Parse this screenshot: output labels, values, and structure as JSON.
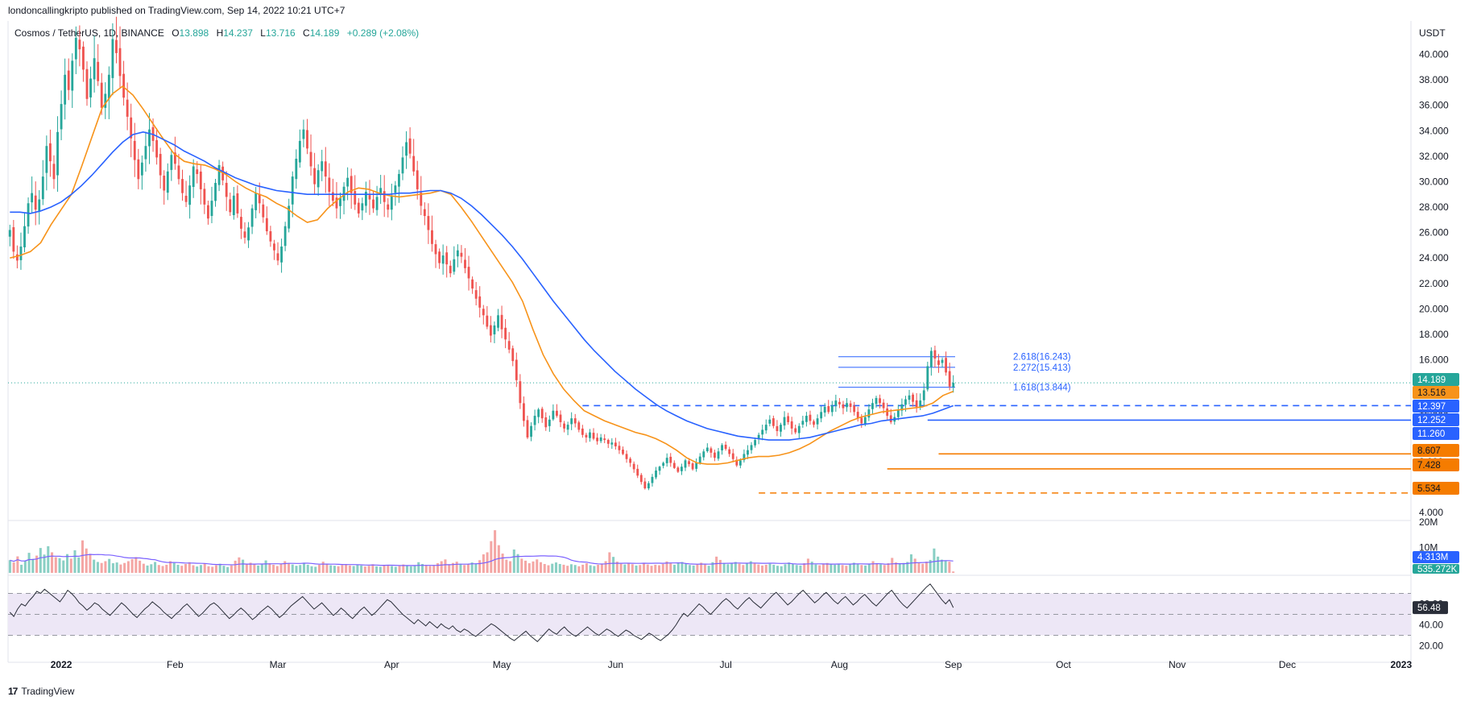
{
  "header": {
    "published": "londoncallingkripto published on TradingView.com, Sep 14, 2022 10:21 UTC+7"
  },
  "legend": {
    "symbol": "Cosmos / TetherUS, 1D, BINANCE",
    "open_label": "O",
    "open": "13.898",
    "high_label": "H",
    "high": "14.237",
    "low_label": "L",
    "low": "13.716",
    "close_label": "C",
    "close": "14.189",
    "change": "+0.289 (+2.08%)"
  },
  "footer": {
    "brand_mark": "17",
    "brand": "TradingView"
  },
  "colors": {
    "up": "#26a69a",
    "down": "#ef5350",
    "ema_fast": "#f7931a",
    "ema_slow": "#2962ff",
    "rsi_line": "#2a2e39",
    "rsi_band": "#ede7f6",
    "vol_ma": "#7b61ff",
    "level_blue": "#2962ff",
    "level_orange": "#f57c00"
  },
  "chart_data": [
    {
      "type": "candlestick",
      "currency": "USDT",
      "y_ticks": [
        "40.000",
        "38.000",
        "36.000",
        "34.000",
        "32.000",
        "30.000",
        "28.000",
        "26.000",
        "24.000",
        "22.000",
        "20.000",
        "18.000",
        "16.000",
        "14.000",
        "12.000",
        "10.000",
        "8.000",
        "6.000",
        "4.000"
      ],
      "ylim": [
        3.5,
        42.5
      ],
      "x_ticks": [
        "2022",
        "Feb",
        "Mar",
        "Apr",
        "May",
        "Jun",
        "Jul",
        "Aug",
        "Sep",
        "Oct",
        "Nov",
        "Dec",
        "2023"
      ],
      "close_series": [
        26.2,
        24.5,
        23.8,
        24.9,
        26.5,
        28.3,
        29.1,
        27.8,
        28.6,
        30.4,
        32.8,
        31.6,
        30.2,
        33.9,
        36.1,
        38.4,
        37.2,
        39.5,
        41.3,
        40.4,
        38.8,
        36.5,
        38.1,
        39.7,
        37.9,
        35.8,
        36.9,
        38.4,
        41.2,
        40.1,
        38.3,
        36.6,
        35.1,
        33.4,
        31.7,
        30.2,
        31.5,
        32.8,
        34.1,
        33.2,
        31.9,
        30.5,
        29.3,
        30.8,
        32.1,
        31.4,
        30.2,
        29.1,
        28.4,
        29.7,
        31.2,
        30.6,
        29.4,
        28.2,
        27.1,
        28.5,
        29.9,
        31.3,
        30.1,
        28.8,
        27.6,
        28.9,
        27.5,
        26.3,
        25.6,
        26.4,
        27.9,
        29.1,
        28.3,
        27.2,
        26.1,
        25.3,
        24.6,
        23.8,
        24.9,
        26.5,
        28.1,
        30.4,
        31.8,
        33.2,
        34.1,
        32.6,
        31.2,
        29.8,
        30.9,
        31.6,
        30.4,
        29.2,
        28.5,
        27.9,
        28.7,
        29.6,
        30.3,
        29.1,
        28.2,
        27.5,
        28.3,
        29.2,
        28.6,
        27.9,
        28.8,
        29.5,
        28.4,
        27.8,
        28.9,
        29.7,
        30.6,
        31.9,
        33.1,
        32.2,
        30.8,
        29.4,
        28.1,
        27.3,
        26.2,
        25.1,
        24.3,
        23.6,
        24.2,
        23.5,
        22.8,
        23.9,
        24.6,
        24.1,
        23.2,
        22.4,
        21.6,
        20.8,
        20.1,
        19.5,
        18.6,
        17.9,
        18.7,
        19.5,
        18.4,
        17.6,
        16.8,
        15.9,
        14.4,
        12.6,
        11.2,
        9.9,
        10.8,
        11.6,
        12.1,
        11.4,
        10.7,
        11.3,
        12.0,
        11.6,
        11.1,
        10.6,
        10.9,
        11.4,
        11.0,
        10.5,
        10.1,
        9.9,
        10.3,
        9.8,
        9.6,
        9.9,
        9.7,
        9.4,
        9.5,
        9.2,
        8.9,
        8.6,
        8.2,
        7.9,
        7.4,
        6.9,
        6.4,
        5.9,
        6.3,
        6.8,
        7.3,
        7.6,
        7.9,
        8.3,
        7.9,
        7.5,
        7.2,
        7.6,
        8.1,
        7.8,
        7.4,
        7.9,
        8.4,
        8.8,
        9.1,
        8.7,
        8.3,
        8.8,
        9.3,
        9.0,
        8.6,
        8.2,
        7.7,
        8.1,
        8.6,
        8.9,
        9.3,
        9.7,
        10.1,
        10.5,
        10.9,
        11.3,
        10.8,
        10.4,
        10.9,
        11.5,
        11.1,
        10.6,
        10.3,
        10.8,
        11.2,
        11.6,
        11.2,
        10.9,
        11.4,
        11.9,
        12.3,
        11.9,
        12.4,
        12.8,
        12.5,
        12.2,
        12.6,
        12.3,
        11.9,
        11.4,
        11.0,
        11.5,
        12.1,
        12.6,
        13.0,
        12.6,
        12.2,
        11.6,
        11.1,
        11.5,
        12.1,
        12.5,
        12.9,
        13.2,
        12.7,
        12.3,
        12.8,
        13.6,
        15.5,
        16.7,
        16.1,
        15.6,
        16.0,
        15.0,
        13.9,
        14.189
      ],
      "ema_fast_series": [
        24.0,
        24.2,
        24.5,
        25.2,
        26.6,
        27.8,
        29.0,
        31.2,
        33.5,
        35.8,
        36.9,
        37.5,
        36.8,
        35.7,
        34.5,
        33.3,
        32.2,
        31.6,
        31.4,
        31.3,
        31.0,
        30.6,
        30.0,
        29.5,
        29.1,
        28.8,
        28.3,
        27.9,
        27.3,
        26.8,
        27.0,
        27.9,
        28.6,
        29.2,
        29.5,
        29.4,
        29.1,
        28.9,
        28.8,
        28.9,
        29.0,
        29.1,
        29.3,
        29.0,
        28.0,
        26.9,
        25.7,
        24.5,
        23.3,
        22.1,
        20.6,
        18.4,
        16.4,
        14.9,
        13.7,
        12.8,
        12.0,
        11.6,
        11.2,
        10.9,
        10.6,
        10.3,
        10.1,
        9.8,
        9.4,
        8.9,
        8.3,
        7.9,
        7.8,
        7.8,
        7.9,
        8.1,
        8.3,
        8.4,
        8.4,
        8.5,
        8.7,
        9.0,
        9.4,
        9.9,
        10.4,
        10.8,
        11.2,
        11.5,
        11.7,
        11.9,
        12.0,
        12.1,
        12.2,
        12.3,
        12.6,
        13.2,
        13.516
      ],
      "ema_slow_series": [
        27.6,
        27.6,
        27.5,
        27.7,
        28.0,
        28.4,
        29.0,
        29.7,
        30.5,
        31.4,
        32.3,
        33.1,
        33.7,
        33.9,
        33.7,
        33.3,
        32.9,
        32.4,
        32.0,
        31.6,
        31.1,
        30.7,
        30.3,
        30.0,
        29.7,
        29.5,
        29.3,
        29.2,
        29.1,
        29.0,
        29.0,
        29.0,
        29.0,
        29.0,
        29.0,
        29.0,
        29.0,
        29.0,
        29.1,
        29.1,
        29.2,
        29.3,
        29.3,
        29.1,
        28.7,
        28.1,
        27.4,
        26.6,
        25.8,
        24.9,
        23.9,
        22.8,
        21.7,
        20.6,
        19.6,
        18.6,
        17.6,
        16.7,
        15.9,
        15.1,
        14.4,
        13.7,
        13.1,
        12.5,
        12.0,
        11.6,
        11.2,
        10.9,
        10.6,
        10.4,
        10.2,
        10.0,
        9.9,
        9.8,
        9.7,
        9.7,
        9.7,
        9.8,
        9.9,
        10.1,
        10.3,
        10.5,
        10.7,
        10.9,
        11.0,
        11.2,
        11.3,
        11.4,
        11.5,
        11.6,
        11.8,
        12.1,
        12.397
      ],
      "levels": [
        {
          "value": 12.397,
          "label": "12.397",
          "color": "#2962ff",
          "style": "dashed",
          "start_x_index": 156
        },
        {
          "value": 11.26,
          "label": "11.260",
          "color": "#2962ff",
          "style": "solid",
          "start_x_index": 250
        },
        {
          "value": 8.607,
          "label": "8.607",
          "color": "#f57c00",
          "style": "solid",
          "start_x_index": 253
        },
        {
          "value": 7.428,
          "label": "7.428",
          "color": "#f57c00",
          "style": "solid",
          "start_x_index": 239
        },
        {
          "value": 5.534,
          "label": "5.534",
          "color": "#f57c00",
          "style": "dashed",
          "start_x_index": 204
        }
      ],
      "fib_levels": [
        {
          "value": 16.243,
          "label": "2.618(16.243)"
        },
        {
          "value": 15.413,
          "label": "2.272(15.413)"
        },
        {
          "value": 13.844,
          "label": "1.618(13.844)"
        }
      ],
      "price_badges": [
        {
          "value": 14.189,
          "label": "14.189",
          "color": "#26a69a"
        },
        {
          "value": 13.516,
          "label": "13.516",
          "color": "#f7931a"
        },
        {
          "value": 12.397,
          "label": "12.397",
          "color": "#2962ff"
        },
        {
          "value": 12.252,
          "label": "12.252",
          "color": "#2962ff"
        },
        {
          "value": 11.26,
          "label": "11.260",
          "color": "#2962ff"
        },
        {
          "value": 8.607,
          "label": "8.607",
          "color": "#f57c00"
        },
        {
          "value": 7.428,
          "label": "7.428",
          "color": "#f57c00"
        },
        {
          "value": 5.534,
          "label": "5.534",
          "color": "#f57c00"
        }
      ]
    },
    {
      "type": "bar",
      "name": "volume",
      "y_ticks": [
        "20M",
        "10M"
      ],
      "ylim": [
        0,
        20
      ],
      "values_m": [
        5.0,
        4.1,
        6.5,
        3.2,
        4.8,
        7.9,
        5.5,
        6.8,
        9.8,
        7.2,
        10.5,
        8.1,
        6.2,
        5.8,
        4.9,
        7.4,
        5.6,
        8.9,
        6.1,
        12.8,
        9.6,
        7.5,
        5.2,
        4.3,
        3.9,
        4.6,
        5.5,
        3.8,
        4.1,
        3.3,
        3.9,
        4.6,
        5.4,
        6.2,
        4.8,
        3.6,
        2.9,
        3.4,
        4.3,
        3.1,
        2.7,
        3.2,
        4.6,
        3.9,
        3.2,
        2.8,
        3.5,
        4.2,
        3.0,
        2.5,
        3.1,
        3.8,
        2.6,
        2.4,
        3.0,
        3.6,
        2.8,
        2.3,
        2.9,
        4.8,
        6.1,
        5.2,
        3.5,
        4.0,
        3.4,
        2.9,
        3.6,
        4.9,
        3.8,
        3.2,
        2.7,
        3.5,
        4.6,
        3.9,
        3.3,
        2.8,
        3.1,
        4.0,
        3.2,
        2.6,
        2.4,
        3.2,
        4.4,
        3.6,
        3.0,
        2.8,
        2.6,
        3.1,
        3.5,
        2.9,
        2.7,
        3.3,
        2.9,
        2.5,
        2.8,
        3.4,
        2.6,
        2.4,
        2.9,
        3.2,
        2.7,
        2.4,
        2.8,
        3.3,
        2.9,
        2.6,
        3.0,
        4.2,
        3.5,
        3.1,
        2.7,
        3.0,
        3.8,
        4.6,
        5.3,
        3.4,
        3.9,
        4.4,
        3.6,
        3.1,
        3.5,
        4.1,
        3.6,
        5.0,
        7.3,
        8.1,
        12.5,
        16.8,
        10.9,
        7.6,
        5.2,
        4.6,
        9.2,
        7.4,
        5.6,
        4.8,
        3.8,
        4.5,
        5.3,
        4.2,
        3.5,
        3.0,
        3.6,
        4.1,
        3.5,
        3.2,
        2.8,
        3.4,
        3.1,
        2.6,
        3.2,
        3.8,
        3.0,
        2.7,
        3.2,
        3.6,
        4.6,
        8.1,
        6.3,
        4.4,
        3.6,
        3.3,
        3.9,
        3.4,
        2.9,
        3.1,
        3.7,
        3.3,
        2.8,
        3.2,
        3.0,
        3.5,
        4.5,
        3.8,
        3.2,
        3.9,
        4.3,
        3.6,
        3.1,
        2.9,
        3.4,
        4.0,
        3.3,
        2.8,
        4.2,
        6.4,
        5.1,
        3.9,
        3.4,
        3.7,
        4.3,
        3.6,
        3.1,
        3.8,
        4.6,
        3.9,
        3.3,
        2.9,
        3.2,
        3.6,
        3.2,
        2.8,
        2.6,
        3.4,
        4.1,
        3.5,
        3.1,
        2.9,
        3.8,
        5.6,
        4.4,
        3.3,
        3.0,
        3.4,
        3.9,
        3.4,
        3.2,
        3.6,
        3.1,
        2.8,
        3.3,
        4.0,
        3.6,
        3.1,
        2.9,
        3.5,
        4.6,
        3.8,
        3.4,
        3.1,
        3.8,
        5.9,
        4.1,
        3.5,
        3.9,
        4.3,
        7.3,
        5.6,
        4.1,
        3.6,
        4.4,
        5.1,
        9.6,
        6.4,
        5.2,
        4.8,
        4.4,
        0.54
      ],
      "ma_current": "4.313M",
      "current_volume": "535.272K"
    },
    {
      "type": "line",
      "name": "rsi",
      "y_ticks": [
        "60.00",
        "40.00",
        "20.00"
      ],
      "ylim": [
        15,
        85
      ],
      "band": [
        30,
        70
      ],
      "midline": 50,
      "values": [
        52,
        48,
        55,
        60,
        58,
        63,
        67,
        72,
        70,
        74,
        71,
        68,
        65,
        62,
        67,
        73,
        70,
        66,
        61,
        58,
        54,
        57,
        61,
        59,
        55,
        52,
        49,
        53,
        57,
        61,
        58,
        54,
        50,
        47,
        51,
        55,
        58,
        62,
        59,
        56,
        52,
        49,
        46,
        50,
        53,
        57,
        60,
        56,
        52,
        48,
        51,
        55,
        59,
        61,
        58,
        54,
        50,
        46,
        49,
        53,
        56,
        53,
        49,
        45,
        48,
        52,
        55,
        58,
        55,
        51,
        47,
        50,
        54,
        58,
        61,
        64,
        67,
        63,
        59,
        55,
        58,
        61,
        57,
        53,
        49,
        52,
        56,
        53,
        49,
        46,
        50,
        54,
        57,
        53,
        49,
        52,
        56,
        60,
        64,
        62,
        58,
        54,
        50,
        47,
        44,
        41,
        45,
        42,
        39,
        43,
        40,
        37,
        41,
        38,
        36,
        39,
        35,
        33,
        36,
        34,
        31,
        29,
        32,
        35,
        38,
        41,
        39,
        36,
        33,
        30,
        27,
        25,
        28,
        31,
        34,
        30,
        27,
        24,
        28,
        32,
        36,
        33,
        31,
        35,
        38,
        34,
        31,
        29,
        32,
        35,
        38,
        35,
        32,
        30,
        33,
        36,
        34,
        31,
        29,
        32,
        35,
        33,
        30,
        28,
        26,
        29,
        32,
        30,
        27,
        25,
        28,
        31,
        35,
        40,
        46,
        51,
        48,
        52,
        56,
        60,
        57,
        53,
        50,
        54,
        58,
        62,
        65,
        62,
        58,
        55,
        59,
        63,
        66,
        62,
        59,
        56,
        60,
        64,
        68,
        71,
        67,
        63,
        59,
        62,
        66,
        70,
        73,
        69,
        65,
        61,
        64,
        68,
        71,
        67,
        63,
        60,
        64,
        67,
        63,
        59,
        62,
        66,
        69,
        65,
        61,
        58,
        62,
        66,
        70,
        73,
        68,
        63,
        59,
        56,
        60,
        64,
        68,
        72,
        76,
        79,
        74,
        69,
        64,
        60,
        64,
        56.48
      ],
      "current": "56.48"
    }
  ]
}
